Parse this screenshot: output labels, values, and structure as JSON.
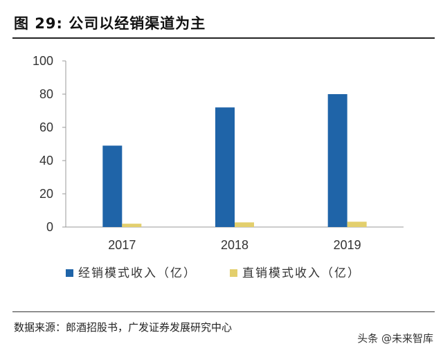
{
  "header": {
    "title": "图 29: 公司以经销渠道为主"
  },
  "footer": {
    "source": "数据来源：郎酒招股书，广发证券发展研究中心",
    "watermark": "头条 @未来智库"
  },
  "chart_data": {
    "type": "bar",
    "categories": [
      "2017",
      "2018",
      "2019"
    ],
    "series": [
      {
        "name": "经销模式收入（亿）",
        "values": [
          49,
          72,
          80
        ],
        "color": "#1f64a8"
      },
      {
        "name": "直销模式收入（亿）",
        "values": [
          2,
          2.8,
          3.2
        ],
        "color": "#e3cf6d"
      }
    ],
    "ylim": [
      0,
      100
    ],
    "yticks": [
      0,
      20,
      40,
      60,
      80,
      100
    ],
    "grid": false,
    "legend_position": "bottom"
  }
}
